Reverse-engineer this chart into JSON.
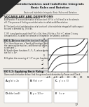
{
  "bg_color": "#f0ede8",
  "title_main": "Antiderivatives and Indefinite Integrals",
  "title_sub": "Basic Rules and Notation",
  "lesson_header": "Basic and Indefinite Integrals: Basic Rules and Notation",
  "section1": "VOCABULARY AND DEFINITIONS",
  "body_lines": [
    "A. A function F is an antiderivative of a function f if F'(x) = f(x) for all x in the domain",
    "of f.  The process of finding an antiderivative is called antidifferentiation.",
    "",
    "B. The family of all antiderivatives of a function f is the indefinite integral of f with respect",
    "to x and is denoted by  ∫ f(x) dx.",
    "",
    "C. If F is any function such that F'(x) = f(x), then ∫ f(x) dx = F(x) + C, where C is any",
    "constant and C is called the constant of integration (or arbitrary constant)."
  ],
  "ex51_header": "EX 5.1:",
  "ex51_text": "We know that if the function F has an antiderivative",
  "ex51_text2": "F'(x), then there are a 'family of functions' which share",
  "ex51_text3": "the same antiderivatives, and these will differ only by",
  "ex51_text4": "a constant C.",
  "ex51a": "A. Sketch three functions F₁, F₂, F₃ whose derivatives",
  "ex51a2": "are f(x) = 3x².",
  "ex51b": "B. Explain the meaning of '+C' as you functions above.",
  "ex52_header": "EX 5.2: Applying Basic Rules",
  "ex52_text": "Given each derivative below, find the general anti-derivative by Power and Check.",
  "items": [
    {
      "label": "A.",
      "expr": "g'(x) = 2x"
    },
    {
      "label": "B.",
      "expr": "f'(x) = x²"
    },
    {
      "label": "C.",
      "expr": "y' = x / 3"
    },
    {
      "label": "D.",
      "expr": "d/dx (cosθ)"
    },
    {
      "label": "E.",
      "expr": "y = 1/3 x³"
    },
    {
      "label": "F.",
      "expr": "f = xⁿ"
    }
  ],
  "page_num": "77",
  "pdf_watermark_color": "#cc3333",
  "line_color": "#888888",
  "header_bg": "#d0d0d0",
  "dark_color": "#222222",
  "medium_color": "#444444",
  "light_color": "#888888",
  "curve_offsets": [
    -2,
    0,
    2
  ],
  "curve_colors": [
    "#555555",
    "#333333",
    "#111111"
  ]
}
